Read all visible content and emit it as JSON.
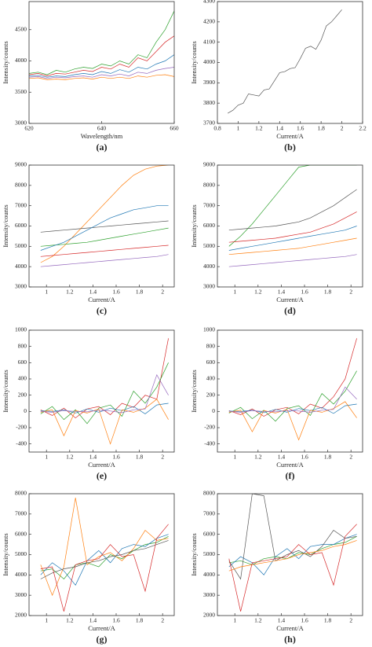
{
  "chart_data": [
    {
      "type": "line",
      "label": "(a)",
      "xlabel": "Wavelength/nm",
      "ylabel": "Intensity/counts",
      "xlim": [
        620,
        660
      ],
      "xticks": [
        620,
        640,
        660
      ],
      "ylim": [
        3000,
        4950
      ],
      "yticks": [
        3000,
        3500,
        4000,
        4500
      ],
      "x": [
        620,
        622.5,
        625,
        627.5,
        630,
        632.5,
        635,
        637.5,
        640,
        642.5,
        645,
        647.5,
        650,
        652.5,
        655,
        657.5,
        660
      ],
      "series": [
        {
          "color": "#2ca02c",
          "values": [
            3800,
            3820,
            3780,
            3850,
            3820,
            3870,
            3900,
            3880,
            3950,
            3920,
            4000,
            3950,
            4100,
            4050,
            4300,
            4500,
            4800
          ]
        },
        {
          "color": "#d62728",
          "values": [
            3780,
            3800,
            3760,
            3800,
            3790,
            3820,
            3850,
            3830,
            3900,
            3870,
            3950,
            3900,
            4050,
            4000,
            4150,
            4300,
            4400
          ]
        },
        {
          "color": "#1f77b4",
          "values": [
            3760,
            3770,
            3740,
            3760,
            3750,
            3780,
            3800,
            3780,
            3830,
            3800,
            3860,
            3820,
            3900,
            3870,
            3950,
            4000,
            4100
          ]
        },
        {
          "color": "#9467bd",
          "values": [
            3740,
            3750,
            3720,
            3740,
            3730,
            3750,
            3760,
            3740,
            3780,
            3760,
            3790,
            3760,
            3820,
            3800,
            3850,
            3880,
            3900
          ]
        },
        {
          "color": "#ff7f0e",
          "values": [
            3720,
            3730,
            3700,
            3710,
            3700,
            3720,
            3730,
            3710,
            3740,
            3720,
            3740,
            3720,
            3760,
            3740,
            3770,
            3780,
            3750
          ]
        }
      ]
    },
    {
      "type": "line",
      "label": "(b)",
      "xlabel": "Current/A",
      "ylabel": "Intensity/counts",
      "xlim": [
        0.8,
        2.2
      ],
      "xticks": [
        0.8,
        1.0,
        1.2,
        1.4,
        1.6,
        1.8,
        2.0,
        2.2
      ],
      "ylim": [
        3700,
        4300
      ],
      "yticks": [
        3700,
        3800,
        3900,
        4000,
        4100,
        4200,
        4300
      ],
      "x": [
        0.9,
        0.95,
        1.0,
        1.05,
        1.1,
        1.15,
        1.2,
        1.25,
        1.3,
        1.35,
        1.4,
        1.45,
        1.5,
        1.55,
        1.6,
        1.65,
        1.7,
        1.75,
        1.8,
        1.85,
        1.9,
        1.95,
        2.0
      ],
      "series": [
        {
          "color": "#555555",
          "values": [
            3750,
            3765,
            3790,
            3800,
            3845,
            3840,
            3835,
            3865,
            3870,
            3910,
            3950,
            3955,
            3970,
            3975,
            4020,
            4070,
            4080,
            4065,
            4110,
            4180,
            4200,
            4230,
            4260
          ]
        }
      ]
    },
    {
      "type": "line",
      "label": "(c)",
      "xlabel": "Current/A",
      "ylabel": "Intensity/counts",
      "xlim": [
        0.85,
        2.1
      ],
      "xticks": [
        1.0,
        1.2,
        1.4,
        1.6,
        1.8,
        2.0
      ],
      "ylim": [
        3000,
        9000
      ],
      "yticks": [
        3000,
        4000,
        5000,
        6000,
        7000,
        8000,
        9000
      ],
      "x": [
        0.95,
        1.05,
        1.15,
        1.25,
        1.35,
        1.45,
        1.55,
        1.65,
        1.75,
        1.85,
        1.95,
        2.05
      ],
      "series": [
        {
          "color": "#ff7f0e",
          "values": [
            4200,
            4500,
            5000,
            5600,
            6200,
            6800,
            7400,
            8000,
            8500,
            8800,
            8950,
            9000
          ]
        },
        {
          "color": "#555555",
          "values": [
            5700,
            5750,
            5800,
            5850,
            5900,
            5950,
            6000,
            6050,
            6100,
            6150,
            6200,
            6250
          ]
        },
        {
          "color": "#2ca02c",
          "values": [
            5000,
            5050,
            5100,
            5150,
            5200,
            5300,
            5400,
            5500,
            5600,
            5700,
            5800,
            5900
          ]
        },
        {
          "color": "#d62728",
          "values": [
            4500,
            4550,
            4600,
            4650,
            4700,
            4750,
            4800,
            4850,
            4900,
            4950,
            5000,
            5050
          ]
        },
        {
          "color": "#9467bd",
          "values": [
            4000,
            4050,
            4100,
            4150,
            4200,
            4250,
            4300,
            4350,
            4400,
            4450,
            4500,
            4600
          ]
        },
        {
          "color": "#1f77b4",
          "values": [
            4800,
            5000,
            5200,
            5500,
            5800,
            6100,
            6400,
            6600,
            6800,
            6900,
            7000,
            7000
          ]
        }
      ]
    },
    {
      "type": "line",
      "label": "(d)",
      "xlabel": "Current/A",
      "ylabel": "Intensity/counts",
      "xlim": [
        0.85,
        2.1
      ],
      "xticks": [
        1.0,
        1.2,
        1.4,
        1.6,
        1.8,
        2.0
      ],
      "ylim": [
        3000,
        9000
      ],
      "yticks": [
        3000,
        4000,
        5000,
        6000,
        7000,
        8000,
        9000
      ],
      "x": [
        0.95,
        1.05,
        1.15,
        1.25,
        1.35,
        1.45,
        1.55,
        1.65,
        1.75,
        1.85,
        1.95,
        2.05
      ],
      "series": [
        {
          "color": "#2ca02c",
          "values": [
            5000,
            5500,
            6100,
            6800,
            7500,
            8200,
            8900,
            9000,
            9000,
            9000,
            9000,
            9000
          ]
        },
        {
          "color": "#555555",
          "values": [
            5800,
            5850,
            5900,
            5950,
            6000,
            6100,
            6200,
            6400,
            6700,
            7000,
            7400,
            7800
          ]
        },
        {
          "color": "#d62728",
          "values": [
            5200,
            5250,
            5300,
            5350,
            5400,
            5500,
            5600,
            5700,
            5900,
            6100,
            6400,
            6700
          ]
        },
        {
          "color": "#ff7f0e",
          "values": [
            4600,
            4650,
            4700,
            4750,
            4800,
            4850,
            4900,
            5000,
            5100,
            5200,
            5300,
            5400
          ]
        },
        {
          "color": "#9467bd",
          "values": [
            4000,
            4050,
            4100,
            4150,
            4200,
            4250,
            4300,
            4350,
            4400,
            4450,
            4500,
            4600
          ]
        },
        {
          "color": "#1f77b4",
          "values": [
            4800,
            4900,
            5000,
            5100,
            5200,
            5300,
            5400,
            5500,
            5600,
            5700,
            5800,
            6000
          ]
        }
      ]
    },
    {
      "type": "line",
      "label": "(e)",
      "xlabel": "Current/A",
      "ylabel": "Intensity/counts",
      "xlim": [
        0.85,
        2.1
      ],
      "xticks": [
        1.0,
        1.2,
        1.4,
        1.6,
        1.8,
        2.0
      ],
      "ylim": [
        -500,
        1000
      ],
      "yticks": [
        -400,
        -200,
        0,
        200,
        400,
        600,
        800,
        1000
      ],
      "x": [
        0.95,
        1.05,
        1.15,
        1.25,
        1.35,
        1.45,
        1.55,
        1.65,
        1.75,
        1.85,
        1.95,
        2.05
      ],
      "series": [
        {
          "color": "#d62728",
          "values": [
            20,
            -50,
            40,
            -80,
            30,
            60,
            -40,
            100,
            50,
            200,
            150,
            900
          ]
        },
        {
          "color": "#2ca02c",
          "values": [
            -30,
            60,
            -100,
            20,
            -150,
            40,
            80,
            -60,
            250,
            100,
            300,
            600
          ]
        },
        {
          "color": "#1f77b4",
          "values": [
            10,
            0,
            20,
            -20,
            30,
            -10,
            40,
            10,
            60,
            -30,
            80,
            100
          ]
        },
        {
          "color": "#ff7f0e",
          "values": [
            -10,
            20,
            -300,
            10,
            -20,
            30,
            -400,
            20,
            -10,
            40,
            150,
            -100
          ]
        },
        {
          "color": "#9467bd",
          "values": [
            0,
            -10,
            10,
            0,
            -5,
            15,
            5,
            -15,
            20,
            30,
            450,
            200
          ]
        }
      ]
    },
    {
      "type": "line",
      "label": "(f)",
      "xlabel": "Current/A",
      "ylabel": "Intensity/counts",
      "xlim": [
        0.85,
        2.1
      ],
      "xticks": [
        1.0,
        1.2,
        1.4,
        1.6,
        1.8,
        2.0
      ],
      "ylim": [
        -500,
        1000
      ],
      "yticks": [
        -400,
        -200,
        0,
        200,
        400,
        600,
        800,
        1000
      ],
      "x": [
        0.95,
        1.05,
        1.15,
        1.25,
        1.35,
        1.45,
        1.55,
        1.65,
        1.75,
        1.85,
        1.95,
        2.05
      ],
      "series": [
        {
          "color": "#d62728",
          "values": [
            10,
            -40,
            30,
            -60,
            20,
            50,
            -30,
            90,
            40,
            180,
            400,
            900
          ]
        },
        {
          "color": "#2ca02c",
          "values": [
            -20,
            50,
            -90,
            15,
            -120,
            35,
            70,
            -50,
            220,
            90,
            250,
            500
          ]
        },
        {
          "color": "#1f77b4",
          "values": [
            5,
            0,
            15,
            -15,
            25,
            -10,
            35,
            10,
            50,
            -25,
            70,
            90
          ]
        },
        {
          "color": "#ff7f0e",
          "values": [
            -10,
            15,
            -250,
            10,
            -20,
            25,
            -350,
            15,
            -10,
            35,
            120,
            -80
          ]
        },
        {
          "color": "#9467bd",
          "values": [
            0,
            -10,
            10,
            0,
            -5,
            10,
            5,
            -10,
            15,
            25,
            300,
            150
          ]
        }
      ]
    },
    {
      "type": "line",
      "label": "(g)",
      "xlabel": "Current/A",
      "ylabel": "Intensity/counts",
      "xlim": [
        0.85,
        2.1
      ],
      "xticks": [
        1.0,
        1.2,
        1.4,
        1.6,
        1.8,
        2.0
      ],
      "ylim": [
        2000,
        8000
      ],
      "yticks": [
        2000,
        3000,
        4000,
        5000,
        6000,
        7000,
        8000
      ],
      "x": [
        0.95,
        1.05,
        1.15,
        1.25,
        1.35,
        1.45,
        1.55,
        1.65,
        1.75,
        1.85,
        1.95,
        2.05
      ],
      "series": [
        {
          "color": "#2ca02c",
          "values": [
            4200,
            4300,
            3800,
            4500,
            4600,
            4400,
            5000,
            4800,
            5200,
            5500,
            5600,
            5900
          ]
        },
        {
          "color": "#1f77b4",
          "values": [
            4000,
            4600,
            4200,
            3500,
            4700,
            5200,
            4600,
            5300,
            5500,
            5400,
            5800,
            6000
          ]
        },
        {
          "color": "#ff7f0e",
          "values": [
            4500,
            3000,
            4400,
            7800,
            4500,
            4900,
            5100,
            4700,
            5300,
            6200,
            5700,
            5800
          ]
        },
        {
          "color": "#555555",
          "values": [
            3800,
            4100,
            4300,
            4400,
            4600,
            4700,
            4900,
            5000,
            5200,
            5300,
            5500,
            5700
          ]
        },
        {
          "color": "#d62728",
          "values": [
            4300,
            4400,
            2200,
            4500,
            4700,
            4800,
            5500,
            4900,
            5000,
            3200,
            5800,
            6500
          ]
        }
      ]
    },
    {
      "type": "line",
      "label": "(h)",
      "xlabel": "Current/A",
      "ylabel": "Intensity/counts",
      "xlim": [
        0.85,
        2.1
      ],
      "xticks": [
        1.0,
        1.2,
        1.4,
        1.6,
        1.8,
        2.0
      ],
      "ylim": [
        2000,
        8000
      ],
      "yticks": [
        2000,
        3000,
        4000,
        5000,
        6000,
        7000,
        8000
      ],
      "x": [
        0.95,
        1.05,
        1.15,
        1.25,
        1.35,
        1.45,
        1.55,
        1.65,
        1.75,
        1.85,
        1.95,
        2.05
      ],
      "series": [
        {
          "color": "#2ca02c",
          "values": [
            4600,
            4700,
            4500,
            4800,
            4900,
            4800,
            5100,
            5000,
            5300,
            5500,
            5600,
            5900
          ]
        },
        {
          "color": "#1f77b4",
          "values": [
            4400,
            4900,
            4600,
            4000,
            4900,
            5300,
            4800,
            5400,
            5500,
            5500,
            5800,
            6000
          ]
        },
        {
          "color": "#555555",
          "values": [
            4700,
            3800,
            8000,
            7900,
            4700,
            5000,
            5200,
            4900,
            5400,
            6200,
            5800,
            5900
          ]
        },
        {
          "color": "#ff7f0e",
          "values": [
            4200,
            4400,
            4500,
            4600,
            4700,
            4800,
            5000,
            5100,
            5200,
            5400,
            5500,
            5700
          ]
        },
        {
          "color": "#d62728",
          "values": [
            4800,
            2200,
            4600,
            4700,
            4800,
            4900,
            5500,
            5000,
            5100,
            3500,
            5900,
            6500
          ]
        }
      ]
    }
  ]
}
